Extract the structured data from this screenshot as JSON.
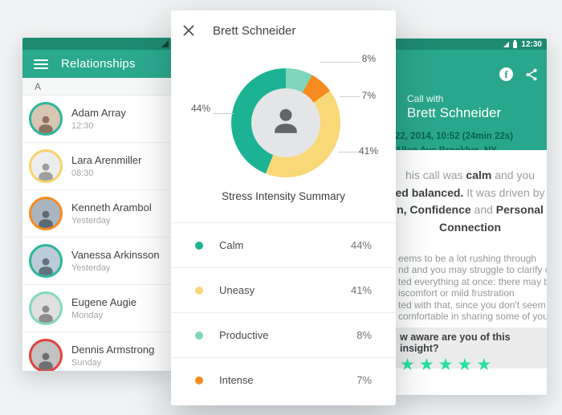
{
  "theme": {
    "app_bar": "#2aa98e",
    "status_bar": "#1e8a72",
    "header_dark_text": "#0b6350",
    "star_color": "#27e0a3",
    "band_bg": "#ececec"
  },
  "icons": {
    "star": "★",
    "facebook_letter": "f"
  },
  "left_screen": {
    "header_title": "Relationships",
    "index_letter": "A",
    "contacts": [
      {
        "name": "Adam Array",
        "time": "12:30",
        "ring": "#2cb69a",
        "avatar_bg": "#d8c5b2",
        "avatar_fg": "#8a7461"
      },
      {
        "name": "Lara Arenmiller",
        "time": "08:30",
        "ring": "#f6d36b",
        "avatar_bg": "#ededed",
        "avatar_fg": "#9e9e9e"
      },
      {
        "name": "Kenneth Arambol",
        "time": "Yesterday",
        "ring": "#f68b1f",
        "avatar_bg": "#a9b6c0",
        "avatar_fg": "#5b6a75"
      },
      {
        "name": "Vanessa Arkinsson",
        "time": "Yesterday",
        "ring": "#2cb69a",
        "avatar_bg": "#bccbd8",
        "avatar_fg": "#5f7280"
      },
      {
        "name": "Eugene Augie",
        "time": "Monday",
        "ring": "#84d8bf",
        "avatar_bg": "#e0e0e0",
        "avatar_fg": "#8c8c8c"
      },
      {
        "name": "Dennis Armstrong",
        "time": "Sunday",
        "ring": "#e4423a",
        "avatar_bg": "#c2c2c2",
        "avatar_fg": "#6f6f6f"
      }
    ]
  },
  "modal": {
    "title": "Brett Schneider",
    "chart_title": "Stress Intensity Summary",
    "donut_labels": {
      "productive": "8%",
      "intense": "7%",
      "uneasy": "41%",
      "calm": "44%"
    },
    "legend": [
      {
        "label": "Calm",
        "value": "44%",
        "color": "#1bb394"
      },
      {
        "label": "Uneasy",
        "value": "41%",
        "color": "#f9d878"
      },
      {
        "label": "Productive",
        "value": "8%",
        "color": "#7fd6bd"
      },
      {
        "label": "Intense",
        "value": "7%",
        "color": "#f68b1f"
      }
    ]
  },
  "chart_data": {
    "type": "pie",
    "subtype": "donut",
    "title": "Stress Intensity Summary",
    "unit": "%",
    "start_angle_deg": 0,
    "direction": "clockwise",
    "center_icon": "person-icon",
    "segments": [
      {
        "label": "Productive",
        "value": 8,
        "color": "#7fd6bd"
      },
      {
        "label": "Intense",
        "value": 7,
        "color": "#f68b1f"
      },
      {
        "label": "Uneasy",
        "value": 41,
        "color": "#f9d878"
      },
      {
        "label": "Calm",
        "value": 44,
        "color": "#1bb394"
      }
    ]
  },
  "right_screen": {
    "status_time": "12:30",
    "call_label": "Call with",
    "callee_name": "Brett Schneider",
    "call_datetime": "22, 2014, 10:52 (24min 22s)",
    "call_location": "Allen Ave Brooklyn, NY",
    "summary_lines": [
      [
        {
          "t": "his call was ",
          "b": false
        },
        {
          "t": "calm",
          "b": true
        },
        {
          "t": " and you",
          "b": false
        }
      ],
      [
        {
          "t": "ed balanced.",
          "b": true
        },
        {
          "t": " It was driven by",
          "b": false
        }
      ],
      [
        {
          "t": "n, Confidence",
          "b": true
        },
        {
          "t": " and ",
          "b": false
        },
        {
          "t": "Personal",
          "b": true
        }
      ],
      [
        {
          "t": "Connection",
          "b": true
        }
      ]
    ],
    "detail_lines": [
      "eems to be a lot rushing through",
      "nd and you may struggle to clarify or",
      "ted everything at once: there may be",
      "iscomfort or mild frustration",
      "ted with that, since you don't seem",
      "comfortable in sharing some of your"
    ],
    "question": "w aware are you of this insight?",
    "stars_count": 5
  }
}
